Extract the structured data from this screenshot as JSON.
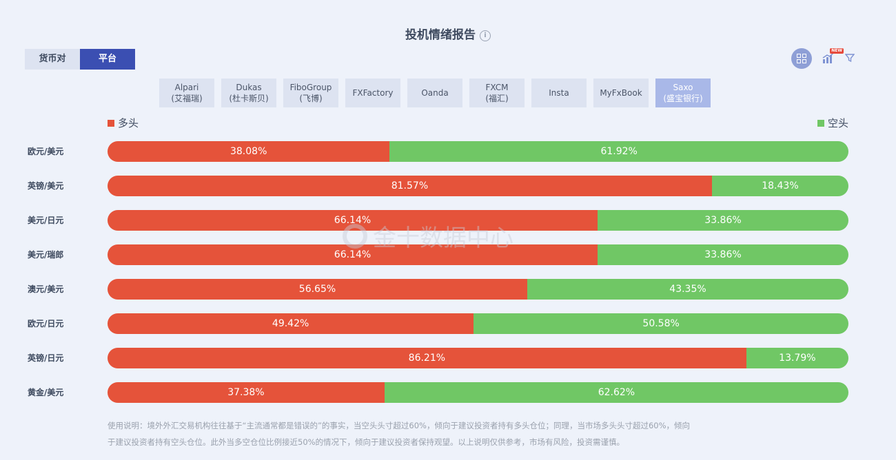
{
  "title": "投机情绪报告",
  "info_icon": "info-circle-icon",
  "toggle": [
    {
      "label": "货币对",
      "active": false
    },
    {
      "label": "平台",
      "active": true
    }
  ],
  "toolbar_icons": [
    "grid-view-icon",
    "chart-new-icon",
    "filter-icon"
  ],
  "new_badge": "NEW",
  "platforms": [
    {
      "line1": "Alpari",
      "line2": "(艾福瑞)",
      "active": false
    },
    {
      "line1": "Dukas",
      "line2": "(杜卡斯贝)",
      "active": false
    },
    {
      "line1": "FiboGroup",
      "line2": "(飞博)",
      "active": false
    },
    {
      "line1": "FXFactory",
      "line2": "",
      "active": false
    },
    {
      "line1": "Oanda",
      "line2": "",
      "active": false
    },
    {
      "line1": "FXCM",
      "line2": "(福汇)",
      "active": false
    },
    {
      "line1": "Insta",
      "line2": "",
      "active": false
    },
    {
      "line1": "MyFxBook",
      "line2": "",
      "active": false
    },
    {
      "line1": "Saxo",
      "line2": "(盛宝银行)",
      "active": true
    }
  ],
  "colors": {
    "long": "#e5533a",
    "short": "#70c765",
    "accent": "#3b4fb2"
  },
  "chart_data": {
    "type": "bar",
    "stacked": true,
    "orientation": "horizontal",
    "categories": [
      "欧元/美元",
      "英镑/美元",
      "美元/日元",
      "美元/瑞郎",
      "澳元/美元",
      "欧元/日元",
      "英镑/日元",
      "黄金/美元"
    ],
    "series": [
      {
        "name": "多头",
        "values": [
          38.08,
          81.57,
          66.14,
          66.14,
          56.65,
          49.42,
          86.21,
          37.38
        ]
      },
      {
        "name": "空头",
        "values": [
          61.92,
          18.43,
          33.86,
          33.86,
          43.35,
          50.58,
          13.79,
          62.62
        ]
      }
    ],
    "unit": "%",
    "legend": "top"
  },
  "watermark": "金十数据中心",
  "note_lines": [
    "使用说明：境外外汇交易机构往往基于“主流通常都是错误的”的事实，当空头头寸超过60%，倾向于建议投资者持有多头仓位；同理，当市场多头头寸超过60%，倾向",
    "于建议投资者持有空头仓位。此外当多空仓位比例接近50%的情况下，倾向于建议投资者保持观望。以上说明仅供参考，市场有风险，投资需谨慎。"
  ]
}
